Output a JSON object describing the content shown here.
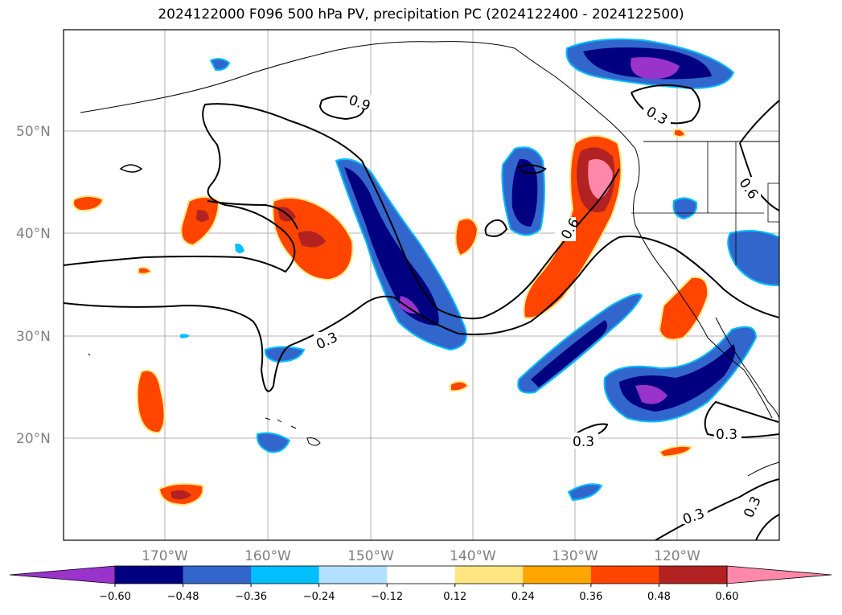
{
  "title": "2024122000 F096 500 hPa PV, precipitation PC (2024122400 - 2024122500)",
  "lat_labels": [
    "50°N",
    "40°N",
    "30°N",
    "20°N"
  ],
  "lon_labels": [
    "170°W",
    "160°W",
    "150°W",
    "140°W",
    "130°W",
    "120°W"
  ],
  "contour_labels": [
    "0.9",
    "0.3",
    "0.6",
    "0.6",
    "0.3",
    "0.3",
    "0.3",
    "0.3",
    "0.3"
  ],
  "colorbar": {
    "tick_labels": [
      "−0.60",
      "−0.48",
      "−0.36",
      "−0.24",
      "−0.12",
      "0.12",
      "0.24",
      "0.36",
      "0.48",
      "0.60"
    ],
    "colors": [
      "#9933cc",
      "#000080",
      "#3366cc",
      "#00bfff",
      "#b3e0ff",
      "#ffffff",
      "#ffe680",
      "#ffa500",
      "#ff4500",
      "#b22222",
      "#ff88aa"
    ]
  },
  "colors": {
    "neg_strong": "#000080",
    "neg_mid": "#3366cc",
    "neg_light": "#00bfff",
    "neg_extreme": "#9933cc",
    "pos_light": "#ffe680",
    "pos_mid": "#ffa500",
    "pos_strong": "#ff4500",
    "pos_darker": "#b22222",
    "pos_extreme": "#ff88aa"
  }
}
